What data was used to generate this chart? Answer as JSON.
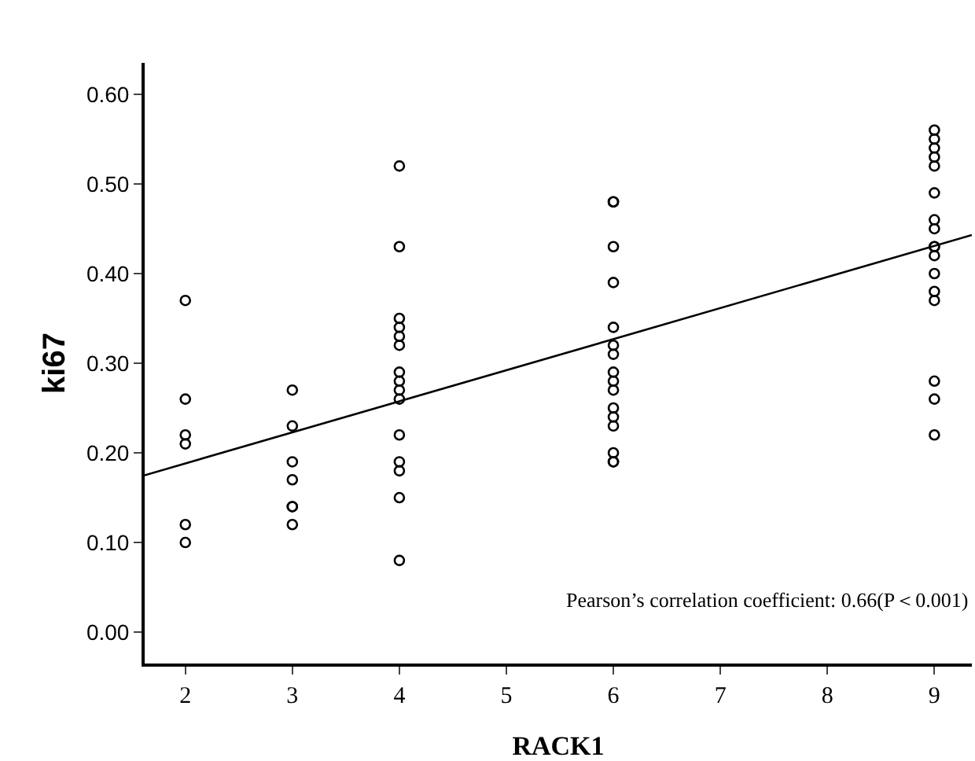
{
  "chart_data": {
    "type": "scatter",
    "xlabel": "RACK1",
    "ylabel": "ki67",
    "xlim": [
      1.62,
      9.35
    ],
    "ylim": [
      -0.035,
      0.635
    ],
    "xticks": [
      2,
      3,
      4,
      5,
      6,
      7,
      8,
      9
    ],
    "yticks": [
      {
        "value": 0,
        "label": "0.00"
      },
      {
        "value": 0.1,
        "label": "0.10"
      },
      {
        "value": 0.2,
        "label": "0.20"
      },
      {
        "value": 0.3,
        "label": "0.30"
      },
      {
        "value": 0.4,
        "label": "0.40"
      },
      {
        "value": 0.5,
        "label": "0.50"
      },
      {
        "value": 0.6,
        "label": "0.60"
      }
    ],
    "grid": false,
    "marker": "circle",
    "series": [
      {
        "color": "#000000",
        "x": [
          2,
          2,
          2,
          2,
          2,
          2,
          3,
          3,
          3,
          3,
          3,
          3,
          3,
          4,
          4,
          4,
          4,
          4,
          4,
          4,
          4,
          4,
          4,
          4,
          4,
          4,
          4,
          4,
          6,
          6,
          6,
          6,
          6,
          6,
          6,
          6,
          6,
          6,
          6,
          6,
          6,
          6,
          6,
          6,
          9,
          9,
          9,
          9,
          9,
          9,
          9,
          9,
          9,
          9,
          9,
          9,
          9,
          9,
          9,
          9,
          9
        ],
        "values": [
          0.37,
          0.26,
          0.22,
          0.21,
          0.12,
          0.1,
          0.27,
          0.23,
          0.19,
          0.17,
          0.14,
          0.14,
          0.12,
          0.52,
          0.43,
          0.35,
          0.34,
          0.33,
          0.32,
          0.29,
          0.28,
          0.27,
          0.26,
          0.22,
          0.19,
          0.18,
          0.15,
          0.08,
          0.48,
          0.48,
          0.43,
          0.39,
          0.34,
          0.32,
          0.31,
          0.29,
          0.28,
          0.27,
          0.25,
          0.24,
          0.23,
          0.2,
          0.19,
          0.19,
          0.56,
          0.55,
          0.54,
          0.53,
          0.52,
          0.49,
          0.46,
          0.45,
          0.43,
          0.43,
          0.42,
          0.4,
          0.38,
          0.37,
          0.28,
          0.26,
          0.22
        ]
      },
      {
        "type": "line",
        "marker": "none",
        "color": "#000000",
        "x": [
          1.62,
          9.35
        ],
        "values": [
          0.175,
          0.443
        ]
      }
    ],
    "annotations": [
      "Pearson’s correlation coefficient: 0.66(P＜0.001)"
    ]
  }
}
